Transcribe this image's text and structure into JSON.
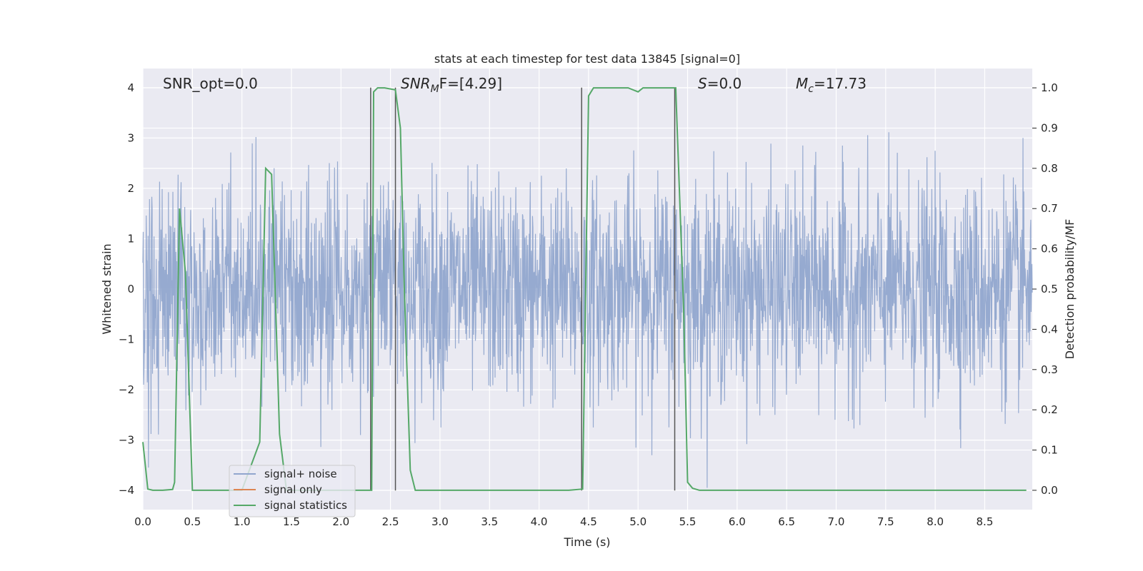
{
  "chart_data": {
    "type": "line",
    "title": "stats at each timestep for test data 13845 [signal=0]",
    "xlabel": "Time (s)",
    "ylabel": "Whitened strain",
    "ylabel_right": "Detection probability/MF",
    "xlim": [
      0.0,
      8.98
    ],
    "ylim": [
      -4.38,
      4.38
    ],
    "ylim_right": [
      -0.048,
      1.048
    ],
    "x_ticks": [
      "0.0",
      "0.5",
      "1.0",
      "1.5",
      "2.0",
      "2.5",
      "3.0",
      "3.5",
      "4.0",
      "4.5",
      "5.0",
      "5.5",
      "6.0",
      "6.5",
      "7.0",
      "7.5",
      "8.0",
      "8.5"
    ],
    "y_ticks": [
      "4",
      "3",
      "2",
      "1",
      "0",
      "−1",
      "−2",
      "−3",
      "−4"
    ],
    "y_ticks_right": [
      "1.0",
      "0.9",
      "0.8",
      "0.7",
      "0.6",
      "0.5",
      "0.4",
      "0.3",
      "0.2",
      "0.1",
      "0.0"
    ],
    "grid": true,
    "legend_position": "lower-left",
    "annotations": {
      "snr_opt": "SNR_opt=0.0",
      "snr_mf_main": "SNR",
      "snr_mf_sub": "M",
      "snr_mf_rest": "F=[4.29]",
      "s_italic": "S",
      "s_rest": "=0.0",
      "mc_main": "M",
      "mc_sub": "c",
      "mc_rest": "=17.73"
    },
    "series": [
      {
        "name": "signal+ noise",
        "color": "#91a6ce",
        "description": "whitened strain noise, amplitude envelope approx ±2.3 with peaks up to ±4"
      },
      {
        "name": "signal only",
        "color": "#dd8452",
        "values": []
      },
      {
        "name": "signal statistics",
        "color": "#55a868",
        "axis": "right",
        "x": [
          0.0,
          0.05,
          0.1,
          0.2,
          0.3,
          0.32,
          0.37,
          0.43,
          0.5,
          1.0,
          1.18,
          1.24,
          1.3,
          1.38,
          1.45,
          1.5,
          2.31,
          2.33,
          2.37,
          2.44,
          2.55,
          2.6,
          2.64,
          2.7,
          2.75,
          4.3,
          4.44,
          4.46,
          4.5,
          4.55,
          4.65,
          4.9,
          5.0,
          5.05,
          5.3,
          5.38,
          5.46,
          5.5,
          5.55,
          5.62,
          8.92
        ],
        "values": [
          0.12,
          0.003,
          0.0,
          0.0,
          0.002,
          0.02,
          0.7,
          0.54,
          0.0,
          0.0,
          0.12,
          0.8,
          0.785,
          0.14,
          0.0,
          0.0,
          0.0,
          0.99,
          1.0,
          1.0,
          0.995,
          0.9,
          0.5,
          0.05,
          0.0,
          0.0,
          0.003,
          0.32,
          0.98,
          1.0,
          1.0,
          1.0,
          0.99,
          1.0,
          1.0,
          1.0,
          0.45,
          0.02,
          0.005,
          0.0,
          0.0
        ]
      }
    ],
    "vertical_markers_x": [
      2.3,
      2.55,
      4.43,
      5.37
    ],
    "background": "#eaeaf2",
    "grid_color": "#ffffff"
  }
}
